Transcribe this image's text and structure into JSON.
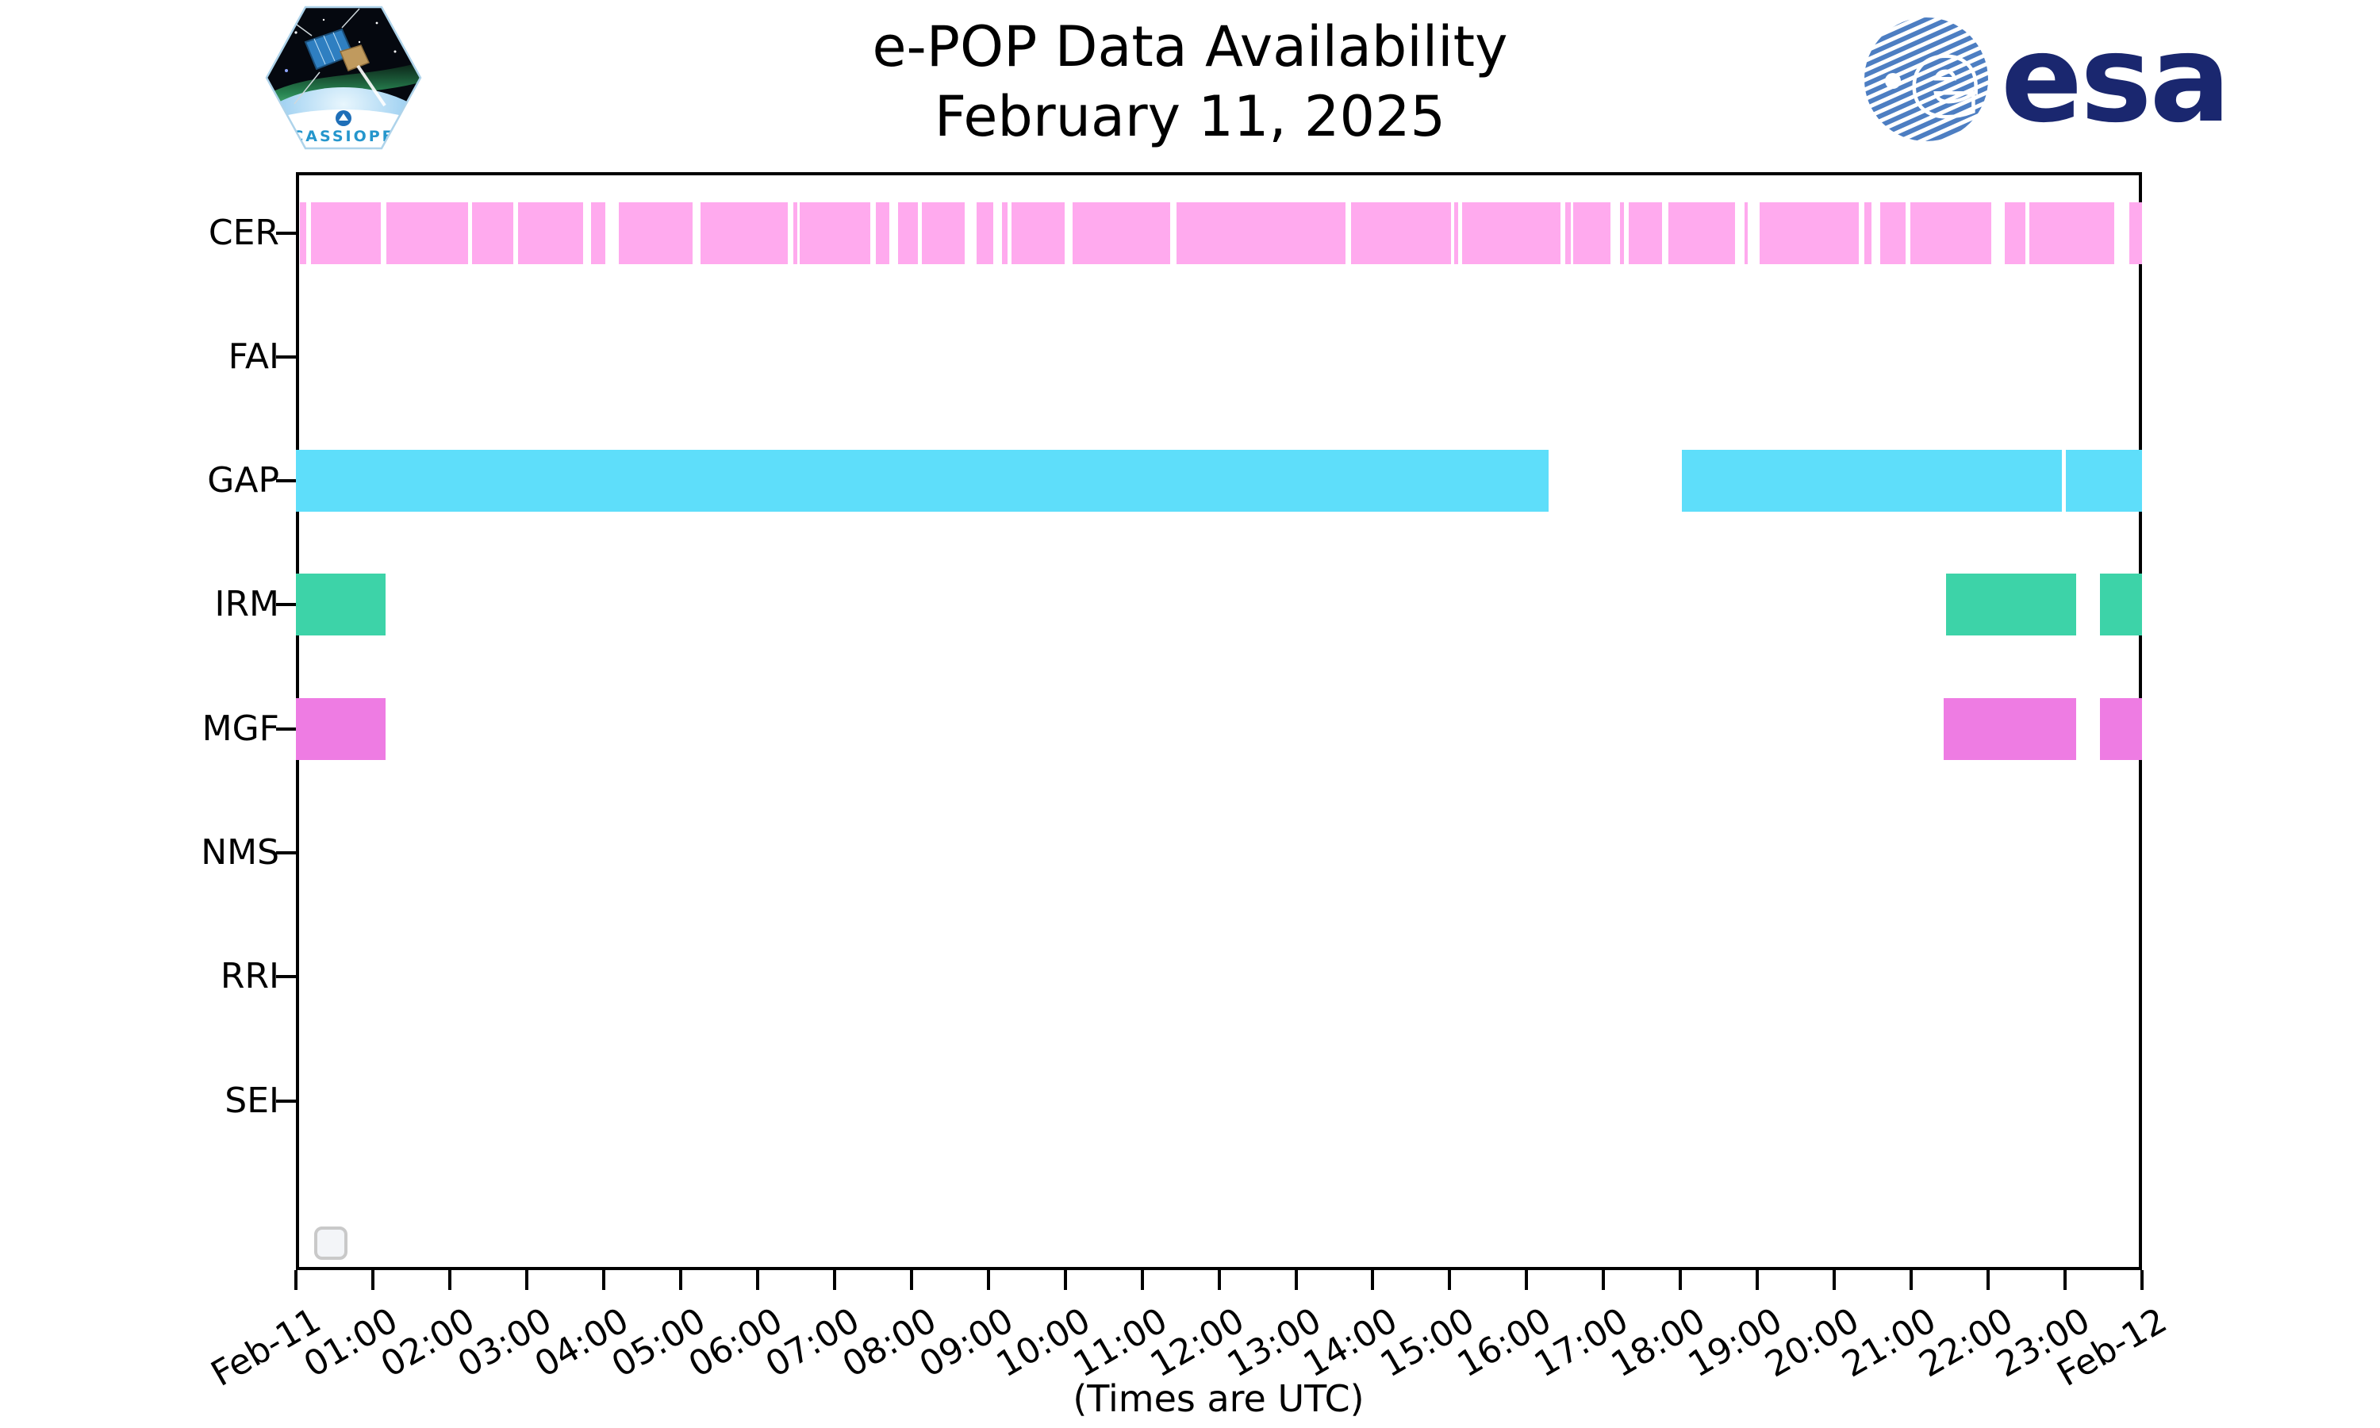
{
  "header": {
    "title_line1": "e-POP Data Availability",
    "title_line2": "February 11, 2025",
    "cassiope_patch_label": "CASSIOPE",
    "esa_logo_text": "esa"
  },
  "footer": {
    "note": "(Times are UTC)"
  },
  "chart_data": {
    "type": "gantt",
    "subtype": "instrument-data-availability-timeline",
    "title": "e-POP Data Availability",
    "subtitle": "February 11, 2025",
    "x_axis": {
      "unit": "hours (UTC)",
      "range_hours": [
        0,
        24
      ],
      "tick_interval_hours": 1,
      "tick_labels": [
        "Feb-11",
        "01:00",
        "02:00",
        "03:00",
        "04:00",
        "05:00",
        "06:00",
        "07:00",
        "08:00",
        "09:00",
        "10:00",
        "11:00",
        "12:00",
        "13:00",
        "14:00",
        "15:00",
        "16:00",
        "17:00",
        "18:00",
        "19:00",
        "20:00",
        "21:00",
        "22:00",
        "23:00",
        "Feb-12"
      ]
    },
    "y_axis": {
      "categories": [
        "CER",
        "FAI",
        "GAP",
        "IRM",
        "MGF",
        "NMS",
        "RRI",
        "SEI"
      ]
    },
    "grid": false,
    "legend_position": "empty-box-bottom-left",
    "series": [
      {
        "name": "CER",
        "color": "#FFAAEE",
        "segments_hours": [
          [
            0.05,
            0.14
          ],
          [
            0.2,
            1.1
          ],
          [
            1.18,
            2.24
          ],
          [
            2.29,
            2.83
          ],
          [
            2.89,
            3.73
          ],
          [
            3.84,
            4.02
          ],
          [
            4.2,
            5.16
          ],
          [
            5.26,
            6.39
          ],
          [
            6.47,
            6.52
          ],
          [
            6.55,
            7.47
          ],
          [
            7.54,
            7.71
          ],
          [
            7.83,
            8.09
          ],
          [
            8.14,
            8.7
          ],
          [
            8.85,
            9.07
          ],
          [
            9.18,
            9.25
          ],
          [
            9.3,
            9.99
          ],
          [
            10.1,
            11.37
          ],
          [
            11.45,
            13.65
          ],
          [
            13.72,
            15.02
          ],
          [
            15.06,
            15.11
          ],
          [
            15.16,
            16.44
          ],
          [
            16.5,
            16.57
          ],
          [
            16.6,
            17.09
          ],
          [
            17.21,
            17.27
          ],
          [
            17.33,
            17.76
          ],
          [
            17.84,
            18.71
          ],
          [
            18.83,
            18.87
          ],
          [
            19.03,
            20.32
          ],
          [
            20.39,
            20.48
          ],
          [
            20.6,
            20.93
          ],
          [
            20.99,
            22.04
          ],
          [
            22.22,
            22.48
          ],
          [
            22.54,
            23.64
          ],
          [
            23.83,
            24.0
          ]
        ]
      },
      {
        "name": "FAI",
        "color": null,
        "segments_hours": []
      },
      {
        "name": "GAP",
        "color": "#5EDEFA",
        "segments_hours": [
          [
            0.0,
            16.28
          ],
          [
            18.02,
            22.96
          ],
          [
            23.01,
            24.0
          ]
        ]
      },
      {
        "name": "IRM",
        "color": "#3DD3A8",
        "segments_hours": [
          [
            0.0,
            1.16
          ],
          [
            21.45,
            22.99
          ],
          [
            22.99,
            23.14
          ],
          [
            23.45,
            24.0
          ]
        ]
      },
      {
        "name": "MGF",
        "color": "#EE7CE3",
        "segments_hours": [
          [
            0.0,
            1.16
          ],
          [
            21.42,
            22.99
          ],
          [
            22.99,
            23.14
          ],
          [
            23.45,
            24.0
          ]
        ]
      },
      {
        "name": "NMS",
        "color": null,
        "segments_hours": []
      },
      {
        "name": "RRI",
        "color": null,
        "segments_hours": []
      },
      {
        "name": "SEI",
        "color": null,
        "segments_hours": []
      }
    ]
  }
}
